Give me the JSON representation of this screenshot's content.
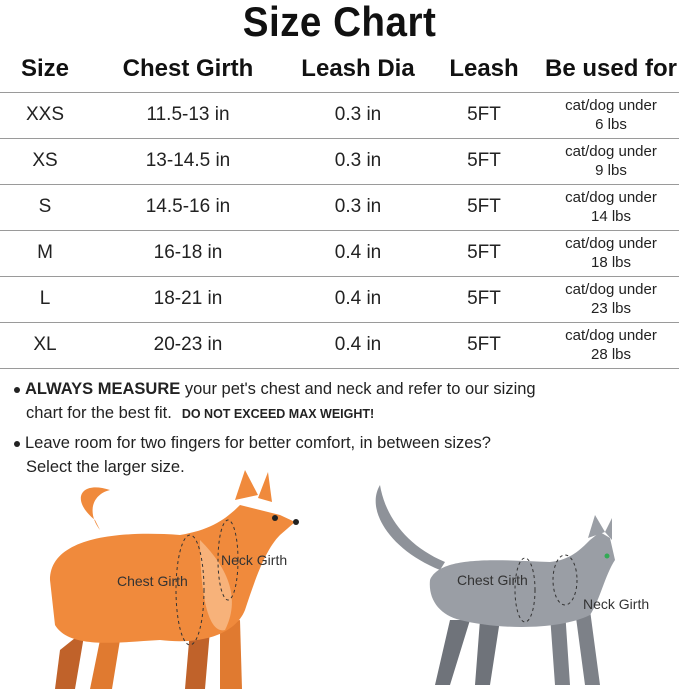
{
  "title": "Size Chart",
  "table": {
    "headers": [
      "Size",
      "Chest Girth",
      "Leash Dia",
      "Leash",
      "Be used for"
    ],
    "rows": [
      {
        "size": "XXS",
        "chest": "11.5-13 in",
        "dia": "0.3 in",
        "leash": "5FT",
        "use1": "cat/dog under",
        "use2": "6 lbs"
      },
      {
        "size": "XS",
        "chest": "13-14.5 in",
        "dia": "0.3 in",
        "leash": "5FT",
        "use1": "cat/dog under",
        "use2": "9 lbs"
      },
      {
        "size": "S",
        "chest": "14.5-16 in",
        "dia": "0.3 in",
        "leash": "5FT",
        "use1": "cat/dog under",
        "use2": "14 lbs"
      },
      {
        "size": "M",
        "chest": "16-18 in",
        "dia": "0.4 in",
        "leash": "5FT",
        "use1": "cat/dog under",
        "use2": "18 lbs"
      },
      {
        "size": "L",
        "chest": "18-21 in",
        "dia": "0.4 in",
        "leash": "5FT",
        "use1": "cat/dog under",
        "use2": "23 lbs"
      },
      {
        "size": "XL",
        "chest": "20-23 in",
        "dia": "0.4 in",
        "leash": "5FT",
        "use1": "cat/dog under",
        "use2": "28 lbs"
      }
    ]
  },
  "notes": {
    "n1_bold": "ALWAYS MEASURE",
    "n1_text": " your pet's chest and neck and refer to our sizing",
    "n1_line2": "chart for the best fit.",
    "n1_caps": "DO NOT EXCEED MAX WEIGHT!",
    "n2_line1": "Leave room for two fingers for better comfort, in between sizes?",
    "n2_line2": "Select the larger size."
  },
  "illustrations": {
    "dog": {
      "chest_label": "Chest Girth",
      "neck_label": "Neck Girth",
      "color": "#f08a3c"
    },
    "cat": {
      "chest_label": "Chest Girth",
      "neck_label": "Neck Girth",
      "color": "#9a9ea5"
    }
  }
}
